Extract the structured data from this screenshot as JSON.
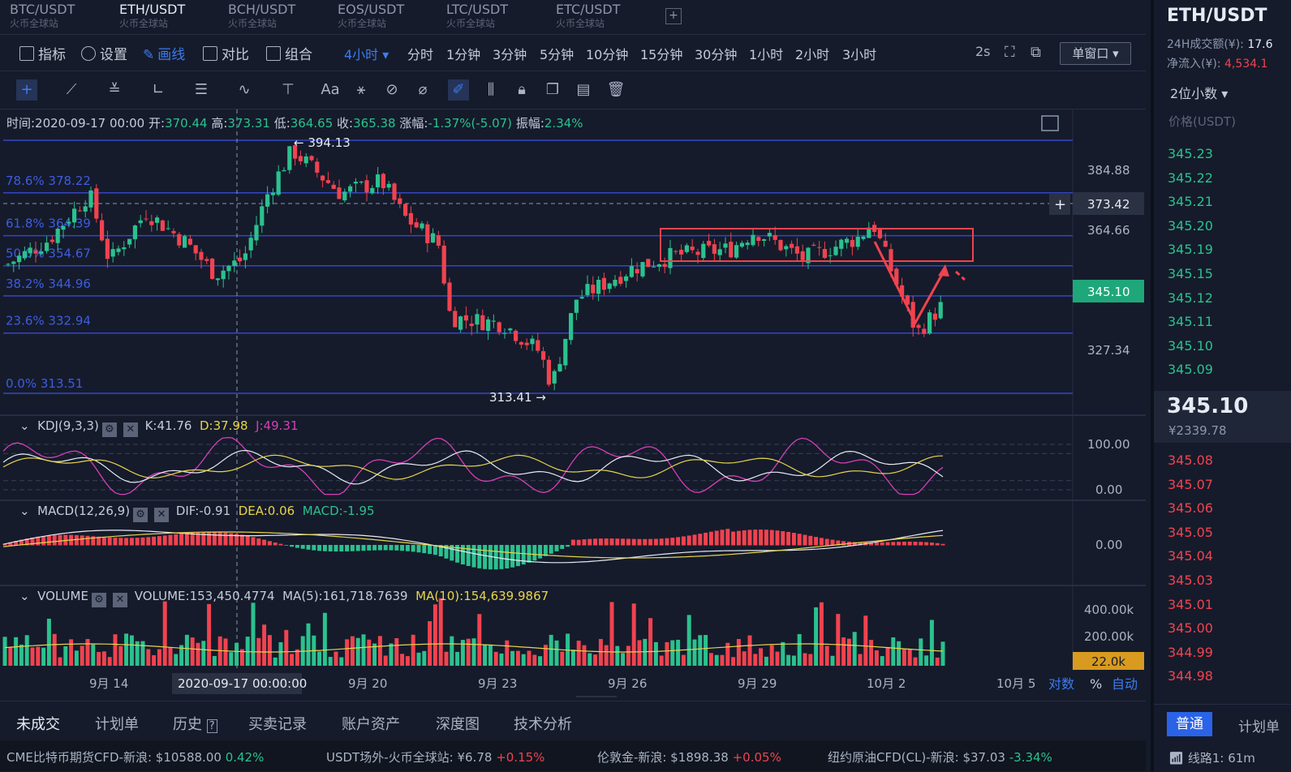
{
  "symbols": [
    {
      "pair": "BTC/USDT",
      "exchange": "火币全球站"
    },
    {
      "pair": "ETH/USDT",
      "exchange": "火币全球站"
    },
    {
      "pair": "BCH/USDT",
      "exchange": "火币全球站"
    },
    {
      "pair": "EOS/USDT",
      "exchange": "火币全球站"
    },
    {
      "pair": "LTC/USDT",
      "exchange": "火币全球站"
    },
    {
      "pair": "ETC/USDT",
      "exchange": "火币全球站"
    }
  ],
  "toolbar": {
    "indicators": "指标",
    "settings": "设置",
    "draw": "画线",
    "compare": "对比",
    "combine": "组合",
    "interval_active": "4小时",
    "intervals": [
      "分时",
      "1分钟",
      "3分钟",
      "5分钟",
      "10分钟",
      "15分钟",
      "30分钟",
      "1小时",
      "2小时",
      "3小时"
    ],
    "refresh": "2s",
    "window": "单窗口"
  },
  "info": {
    "time": "时间:2020-09-17 00:00",
    "open_label": "开:",
    "open": "370.44",
    "high_label": "高:",
    "high": "373.31",
    "low_label": "低:",
    "low": "364.65",
    "close_label": "收:",
    "close": "365.38",
    "change_label": "涨幅:",
    "change": "-1.37%(-5.07)",
    "amp_label": "振幅:",
    "amp": "2.34%"
  },
  "fib": [
    {
      "label": "78.6% 378.22",
      "y": 378.22
    },
    {
      "label": "61.8% 364.39",
      "y": 364.39
    },
    {
      "label": "50.0% 354.67",
      "y": 354.67
    },
    {
      "label": "38.2% 344.96",
      "y": 344.96
    },
    {
      "label": "23.6% 332.94",
      "y": 332.94
    },
    {
      "label": "0.0% 313.51",
      "y": 313.51
    }
  ],
  "annotations": {
    "high": "← 394.13",
    "low": "313.41 →",
    "crosshair_price": "373.42",
    "current_price": "345.10",
    "volume_tag": "22.0k",
    "crosshair_date": "2020-09-17 00:00:00"
  },
  "price_axis": [
    "384.88",
    "364.66",
    "327.34"
  ],
  "kdj": {
    "name": "KDJ(9,3,3)",
    "k": "K:41.76",
    "d": "D:37.98",
    "j": "J:49.31",
    "axis": [
      "100.00",
      "0.00"
    ]
  },
  "macd": {
    "name": "MACD(12,26,9)",
    "dif": "DIF:-0.91",
    "dea": "DEA:0.06",
    "macd": "MACD:-1.95",
    "axis": [
      "0.00"
    ]
  },
  "volume": {
    "name": "VOLUME",
    "vol": "VOLUME:153,450.4774",
    "ma5": "MA(5):161,718.7639",
    "ma10": "MA(10):154,639.9867",
    "axis": [
      "400.00k",
      "200.00k"
    ]
  },
  "date_axis": [
    "9月 14",
    "9月 20",
    "9月 23",
    "9月 26",
    "9月 29",
    "10月 2",
    "10月 5"
  ],
  "axis_opts": {
    "log": "对数",
    "pct": "%",
    "auto": "自动"
  },
  "bottom_tabs": [
    "未成交",
    "计划单",
    "历史",
    "买卖记录",
    "账户资产",
    "深度图",
    "技术分析"
  ],
  "ticker": [
    {
      "name": "CME比特币期货CFD-新浪:",
      "price": "$10588.00",
      "chg": "0.42%",
      "up": true
    },
    {
      "name": "USDT场外-火币全球站:",
      "price": "¥6.78",
      "chg": "+0.15%",
      "up": false
    },
    {
      "name": "伦敦金-新浪:",
      "price": "$1898.38",
      "chg": "+0.05%",
      "up": false
    },
    {
      "name": "纽约原油CFD(CL)-新浪:",
      "price": "$37.03",
      "chg": "-3.34%",
      "up": true
    }
  ],
  "panel": {
    "pair": "ETH/USDT",
    "vol_label": "24H成交额(¥):",
    "vol": "17.6",
    "inflow_label": "净流入(¥):",
    "inflow": "4,534.1",
    "decimals": "2位小数",
    "price_col": "价格(USDT)",
    "asks": [
      "345.23",
      "345.22",
      "345.21",
      "345.20",
      "345.19",
      "345.15",
      "345.12",
      "345.11",
      "345.10",
      "345.09"
    ],
    "last": "345.10",
    "last_cny": "¥2339.78",
    "bids": [
      "345.08",
      "345.07",
      "345.06",
      "345.05",
      "345.04",
      "345.03",
      "345.01",
      "345.00",
      "344.99",
      "344.98"
    ],
    "mode": "普通",
    "plan": "计划单",
    "line": "线路1: 61m"
  },
  "colors": {
    "up": "#2bc18e",
    "down": "#f0434f",
    "accent": "#3d7bf0",
    "bg": "#151b2b"
  }
}
